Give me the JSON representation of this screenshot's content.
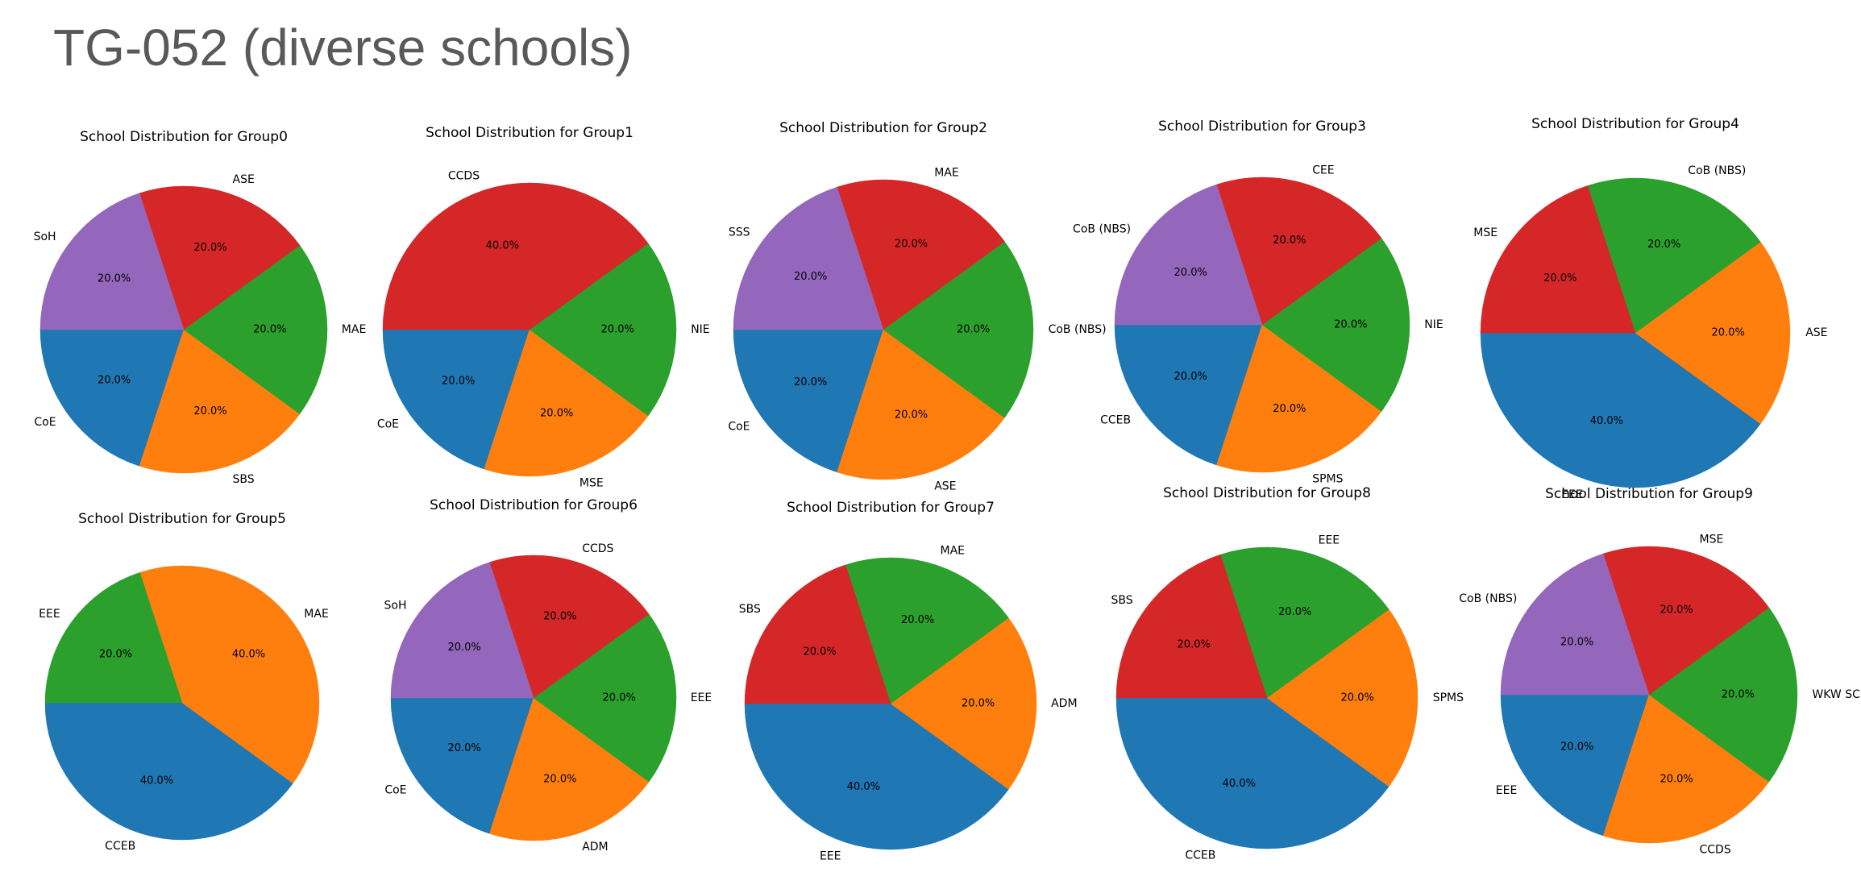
{
  "page": {
    "title": "TG-052 (diverse schools)"
  },
  "colors": {
    "blue": "#1f77b4",
    "orange": "#ff7f0e",
    "green": "#2ca02c",
    "red": "#d62728",
    "purple": "#9467bd"
  },
  "chart_data": [
    {
      "type": "pie",
      "title": "School Distribution for Group0",
      "slices": [
        {
          "label": "CoE",
          "value": 20.0,
          "pct": "20.0%",
          "color": "#1f77b4"
        },
        {
          "label": "SBS",
          "value": 20.0,
          "pct": "20.0%",
          "color": "#ff7f0e"
        },
        {
          "label": "MAE",
          "value": 20.0,
          "pct": "20.0%",
          "color": "#2ca02c"
        },
        {
          "label": "ASE",
          "value": 20.0,
          "pct": "20.0%",
          "color": "#d62728"
        },
        {
          "label": "SoH",
          "value": 20.0,
          "pct": "20.0%",
          "color": "#9467bd"
        }
      ]
    },
    {
      "type": "pie",
      "title": "School Distribution for Group1",
      "slices": [
        {
          "label": "CoE",
          "value": 20.0,
          "pct": "20.0%",
          "color": "#1f77b4"
        },
        {
          "label": "MSE",
          "value": 20.0,
          "pct": "20.0%",
          "color": "#ff7f0e"
        },
        {
          "label": "NIE",
          "value": 20.0,
          "pct": "20.0%",
          "color": "#2ca02c"
        },
        {
          "label": "CCDS",
          "value": 40.0,
          "pct": "40.0%",
          "color": "#d62728"
        }
      ]
    },
    {
      "type": "pie",
      "title": "School Distribution for Group2",
      "slices": [
        {
          "label": "CoE",
          "value": 20.0,
          "pct": "20.0%",
          "color": "#1f77b4"
        },
        {
          "label": "ASE",
          "value": 20.0,
          "pct": "20.0%",
          "color": "#ff7f0e"
        },
        {
          "label": "CoB (NBS)",
          "value": 20.0,
          "pct": "20.0%",
          "color": "#2ca02c"
        },
        {
          "label": "MAE",
          "value": 20.0,
          "pct": "20.0%",
          "color": "#d62728"
        },
        {
          "label": "SSS",
          "value": 20.0,
          "pct": "20.0%",
          "color": "#9467bd"
        }
      ]
    },
    {
      "type": "pie",
      "title": "School Distribution for Group3",
      "slices": [
        {
          "label": "CCEB",
          "value": 20.0,
          "pct": "20.0%",
          "color": "#1f77b4"
        },
        {
          "label": "SPMS",
          "value": 20.0,
          "pct": "20.0%",
          "color": "#ff7f0e"
        },
        {
          "label": "NIE",
          "value": 20.0,
          "pct": "20.0%",
          "color": "#2ca02c"
        },
        {
          "label": "CEE",
          "value": 20.0,
          "pct": "20.0%",
          "color": "#d62728"
        },
        {
          "label": "CoB (NBS)",
          "value": 20.0,
          "pct": "20.0%",
          "color": "#9467bd"
        }
      ]
    },
    {
      "type": "pie",
      "title": "School Distribution for Group4",
      "slices": [
        {
          "label": "EEE",
          "value": 40.0,
          "pct": "40.0%",
          "color": "#1f77b4"
        },
        {
          "label": "ASE",
          "value": 20.0,
          "pct": "20.0%",
          "color": "#ff7f0e"
        },
        {
          "label": "CoB (NBS)",
          "value": 20.0,
          "pct": "20.0%",
          "color": "#2ca02c"
        },
        {
          "label": "MSE",
          "value": 20.0,
          "pct": "20.0%",
          "color": "#d62728"
        }
      ]
    },
    {
      "type": "pie",
      "title": "School Distribution for Group5",
      "slices": [
        {
          "label": "CCEB",
          "value": 40.0,
          "pct": "40.0%",
          "color": "#1f77b4"
        },
        {
          "label": "MAE",
          "value": 40.0,
          "pct": "40.0%",
          "color": "#ff7f0e"
        },
        {
          "label": "EEE",
          "value": 20.0,
          "pct": "20.0%",
          "color": "#2ca02c"
        }
      ]
    },
    {
      "type": "pie",
      "title": "School Distribution for Group6",
      "slices": [
        {
          "label": "CoE",
          "value": 20.0,
          "pct": "20.0%",
          "color": "#1f77b4"
        },
        {
          "label": "ADM",
          "value": 20.0,
          "pct": "20.0%",
          "color": "#ff7f0e"
        },
        {
          "label": "EEE",
          "value": 20.0,
          "pct": "20.0%",
          "color": "#2ca02c"
        },
        {
          "label": "CCDS",
          "value": 20.0,
          "pct": "20.0%",
          "color": "#d62728"
        },
        {
          "label": "SoH",
          "value": 20.0,
          "pct": "20.0%",
          "color": "#9467bd"
        }
      ]
    },
    {
      "type": "pie",
      "title": "School Distribution for Group7",
      "slices": [
        {
          "label": "EEE",
          "value": 40.0,
          "pct": "40.0%",
          "color": "#1f77b4"
        },
        {
          "label": "ADM",
          "value": 20.0,
          "pct": "20.0%",
          "color": "#ff7f0e"
        },
        {
          "label": "MAE",
          "value": 20.0,
          "pct": "20.0%",
          "color": "#2ca02c"
        },
        {
          "label": "SBS",
          "value": 20.0,
          "pct": "20.0%",
          "color": "#d62728"
        }
      ]
    },
    {
      "type": "pie",
      "title": "School Distribution for Group8",
      "slices": [
        {
          "label": "CCEB",
          "value": 40.0,
          "pct": "40.0%",
          "color": "#1f77b4"
        },
        {
          "label": "SPMS",
          "value": 20.0,
          "pct": "20.0%",
          "color": "#ff7f0e"
        },
        {
          "label": "EEE",
          "value": 20.0,
          "pct": "20.0%",
          "color": "#2ca02c"
        },
        {
          "label": "SBS",
          "value": 20.0,
          "pct": "20.0%",
          "color": "#d62728"
        }
      ]
    },
    {
      "type": "pie",
      "title": "School Distribution for Group9",
      "slices": [
        {
          "label": "EEE",
          "value": 20.0,
          "pct": "20.0%",
          "color": "#1f77b4"
        },
        {
          "label": "CCDS",
          "value": 20.0,
          "pct": "20.0%",
          "color": "#ff7f0e"
        },
        {
          "label": "WKW SCI",
          "value": 20.0,
          "pct": "20.0%",
          "color": "#2ca02c"
        },
        {
          "label": "MSE",
          "value": 20.0,
          "pct": "20.0%",
          "color": "#d62728"
        },
        {
          "label": "CoB (NBS)",
          "value": 20.0,
          "pct": "20.0%",
          "color": "#9467bd"
        }
      ]
    }
  ]
}
